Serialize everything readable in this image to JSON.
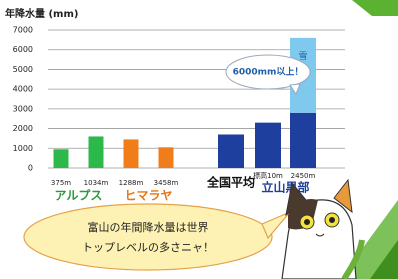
{
  "chart_data": {
    "type": "bar",
    "title": "年降水量 (mm)",
    "ylim": [
      0,
      7000
    ],
    "yticks": [
      0,
      1000,
      2000,
      3000,
      4000,
      5000,
      6000,
      7000
    ],
    "grid": true,
    "groups": [
      {
        "label": "アルプス",
        "label_color": "#2a9a3c",
        "color": "#2db84a",
        "categories": [
          "375m",
          "1034m"
        ],
        "values": [
          950,
          1600
        ]
      },
      {
        "label": "ヒマラヤ",
        "label_color": "#e87512",
        "color": "#f07d1a",
        "categories": [
          "1288m",
          "3458m"
        ],
        "values": [
          1450,
          1050
        ]
      },
      {
        "label": "全国平均",
        "label_color": "#111111",
        "color": "#1f3f9e",
        "categories": [
          null
        ],
        "values": [
          1700
        ]
      },
      {
        "label": "立山黒部",
        "label_color": "#1f3f9e",
        "color": "#1f3f9e",
        "categories": [
          "標高10m",
          "2450m"
        ],
        "values": [
          2300,
          2800
        ],
        "snow": {
          "label": "雪",
          "color": "#7fc8ee",
          "values": [
            null,
            3800
          ]
        }
      }
    ],
    "callout": "6000mm以上！"
  },
  "speech": [
    "富山の年間降水量は世界",
    "トップレベルの多さニャ！"
  ]
}
